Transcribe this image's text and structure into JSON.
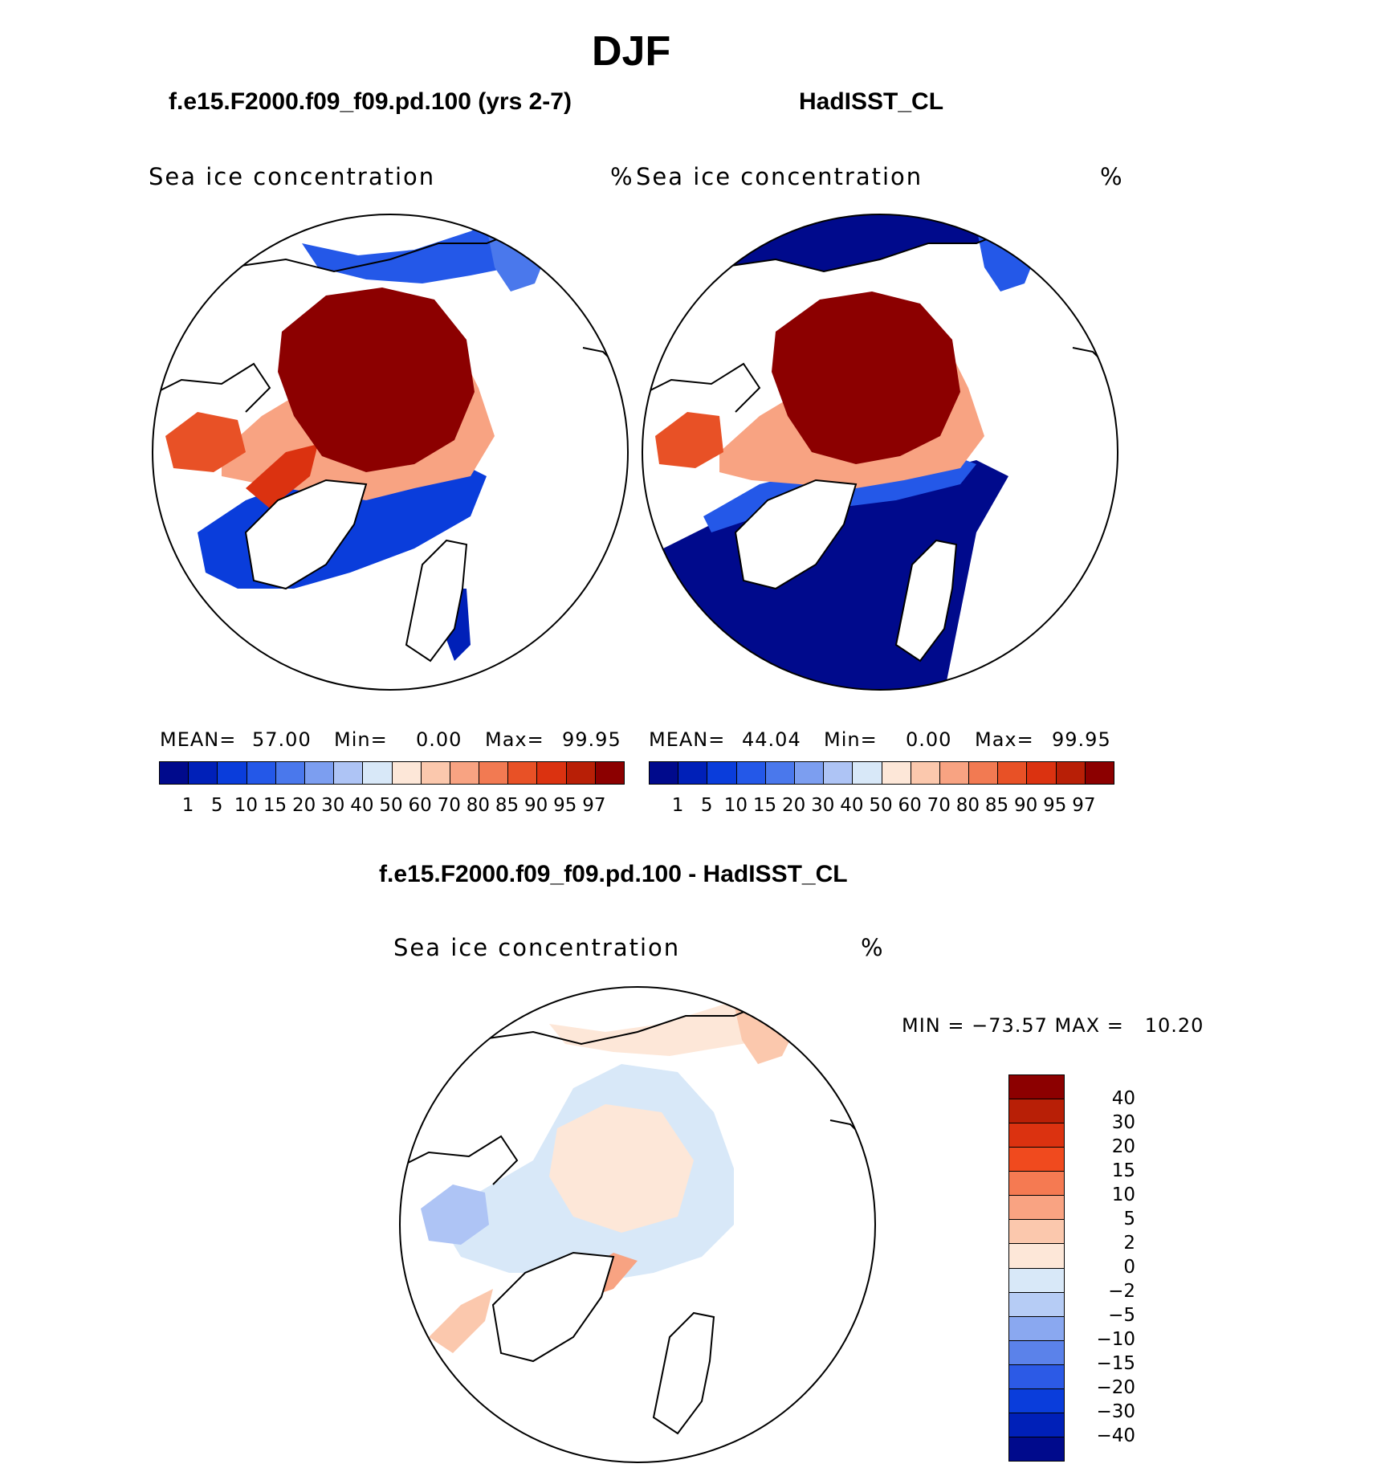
{
  "page_title": "DJF",
  "panels": {
    "model": {
      "case_title": "f.e15.F2000.f09_f09.pd.100 (yrs 2-7)",
      "variable_label": "Sea ice concentration",
      "units": "%",
      "mean_label": "MEAN=",
      "mean_value": "57.00",
      "min_label": "Min=",
      "min_value": "0.00",
      "max_label": "Max=",
      "max_value": "99.95"
    },
    "obs": {
      "case_title": "HadISST_CL",
      "variable_label": "Sea ice concentration",
      "units": "%",
      "mean_label": "MEAN=",
      "mean_value": "44.04",
      "min_label": "Min=",
      "min_value": "0.00",
      "max_label": "Max=",
      "max_value": "99.95"
    },
    "diff": {
      "case_title": "f.e15.F2000.f09_f09.pd.100 - HadISST_CL",
      "variable_label": "Sea ice concentration",
      "units": "%",
      "minmax_text": "MIN = −73.57 MAX =   10.20"
    }
  },
  "colorbars": {
    "concentration": {
      "labels": [
        "1",
        "5",
        "10",
        "15",
        "20",
        "30",
        "40",
        "50",
        "60",
        "70",
        "80",
        "85",
        "90",
        "95",
        "97"
      ],
      "colors": [
        "#000a8c",
        "#0020b8",
        "#0a3ddb",
        "#2458e8",
        "#4a78ec",
        "#7c9ef0",
        "#aec4f5",
        "#d8e8f8",
        "#fde7d8",
        "#fbc8ad",
        "#f8a382",
        "#f27a52",
        "#e85126",
        "#db3210",
        "#b81f06",
        "#8c0000"
      ]
    },
    "difference": {
      "labels": [
        "40",
        "30",
        "20",
        "15",
        "10",
        "5",
        "2",
        "0",
        "−2",
        "−5",
        "−10",
        "−15",
        "−20",
        "−30",
        "−40"
      ],
      "colors": [
        "#8c0000",
        "#b81f06",
        "#db3210",
        "#f04a1e",
        "#f57a52",
        "#f9a382",
        "#fbc8ad",
        "#fde7d8",
        "#d8e8f8",
        "#b6ccf5",
        "#8aa8f0",
        "#5b82ea",
        "#2c5ae6",
        "#0a3ddb",
        "#0020b8",
        "#000a8c"
      ]
    }
  }
}
